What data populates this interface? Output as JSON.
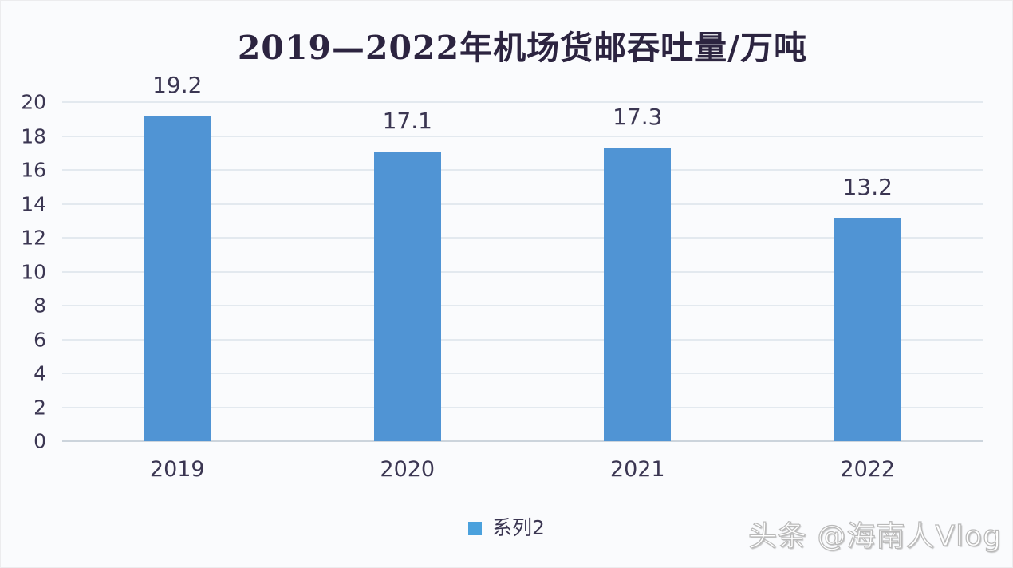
{
  "chart_data": {
    "type": "bar",
    "title": "2019—2022年机场货邮吞吐量/万吨",
    "categories": [
      "2019",
      "2020",
      "2021",
      "2022"
    ],
    "series": [
      {
        "name": "系列2",
        "values": [
          19.2,
          17.1,
          17.3,
          13.2
        ]
      }
    ],
    "data_labels": [
      "19.2",
      "17.1",
      "17.3",
      "13.2"
    ],
    "xlabel": "",
    "ylabel": "",
    "y_axis": {
      "min": 0,
      "max": 20,
      "step": 2,
      "ticks": [
        "0",
        "2",
        "4",
        "6",
        "8",
        "10",
        "12",
        "14",
        "16",
        "18",
        "20"
      ]
    },
    "grid": true,
    "legend": {
      "position": "bottom",
      "entries": [
        "系列2"
      ]
    }
  },
  "watermark": {
    "text": "头条 @海南人Vlog"
  },
  "colors": {
    "bar": "#5094d4",
    "legend_swatch": "#4ba1dd",
    "grid": "#e3e9ef",
    "baseline": "#ccd4dc",
    "title": "#2c2440",
    "axis_text": "#3b3652",
    "background": "#fafbfd"
  }
}
